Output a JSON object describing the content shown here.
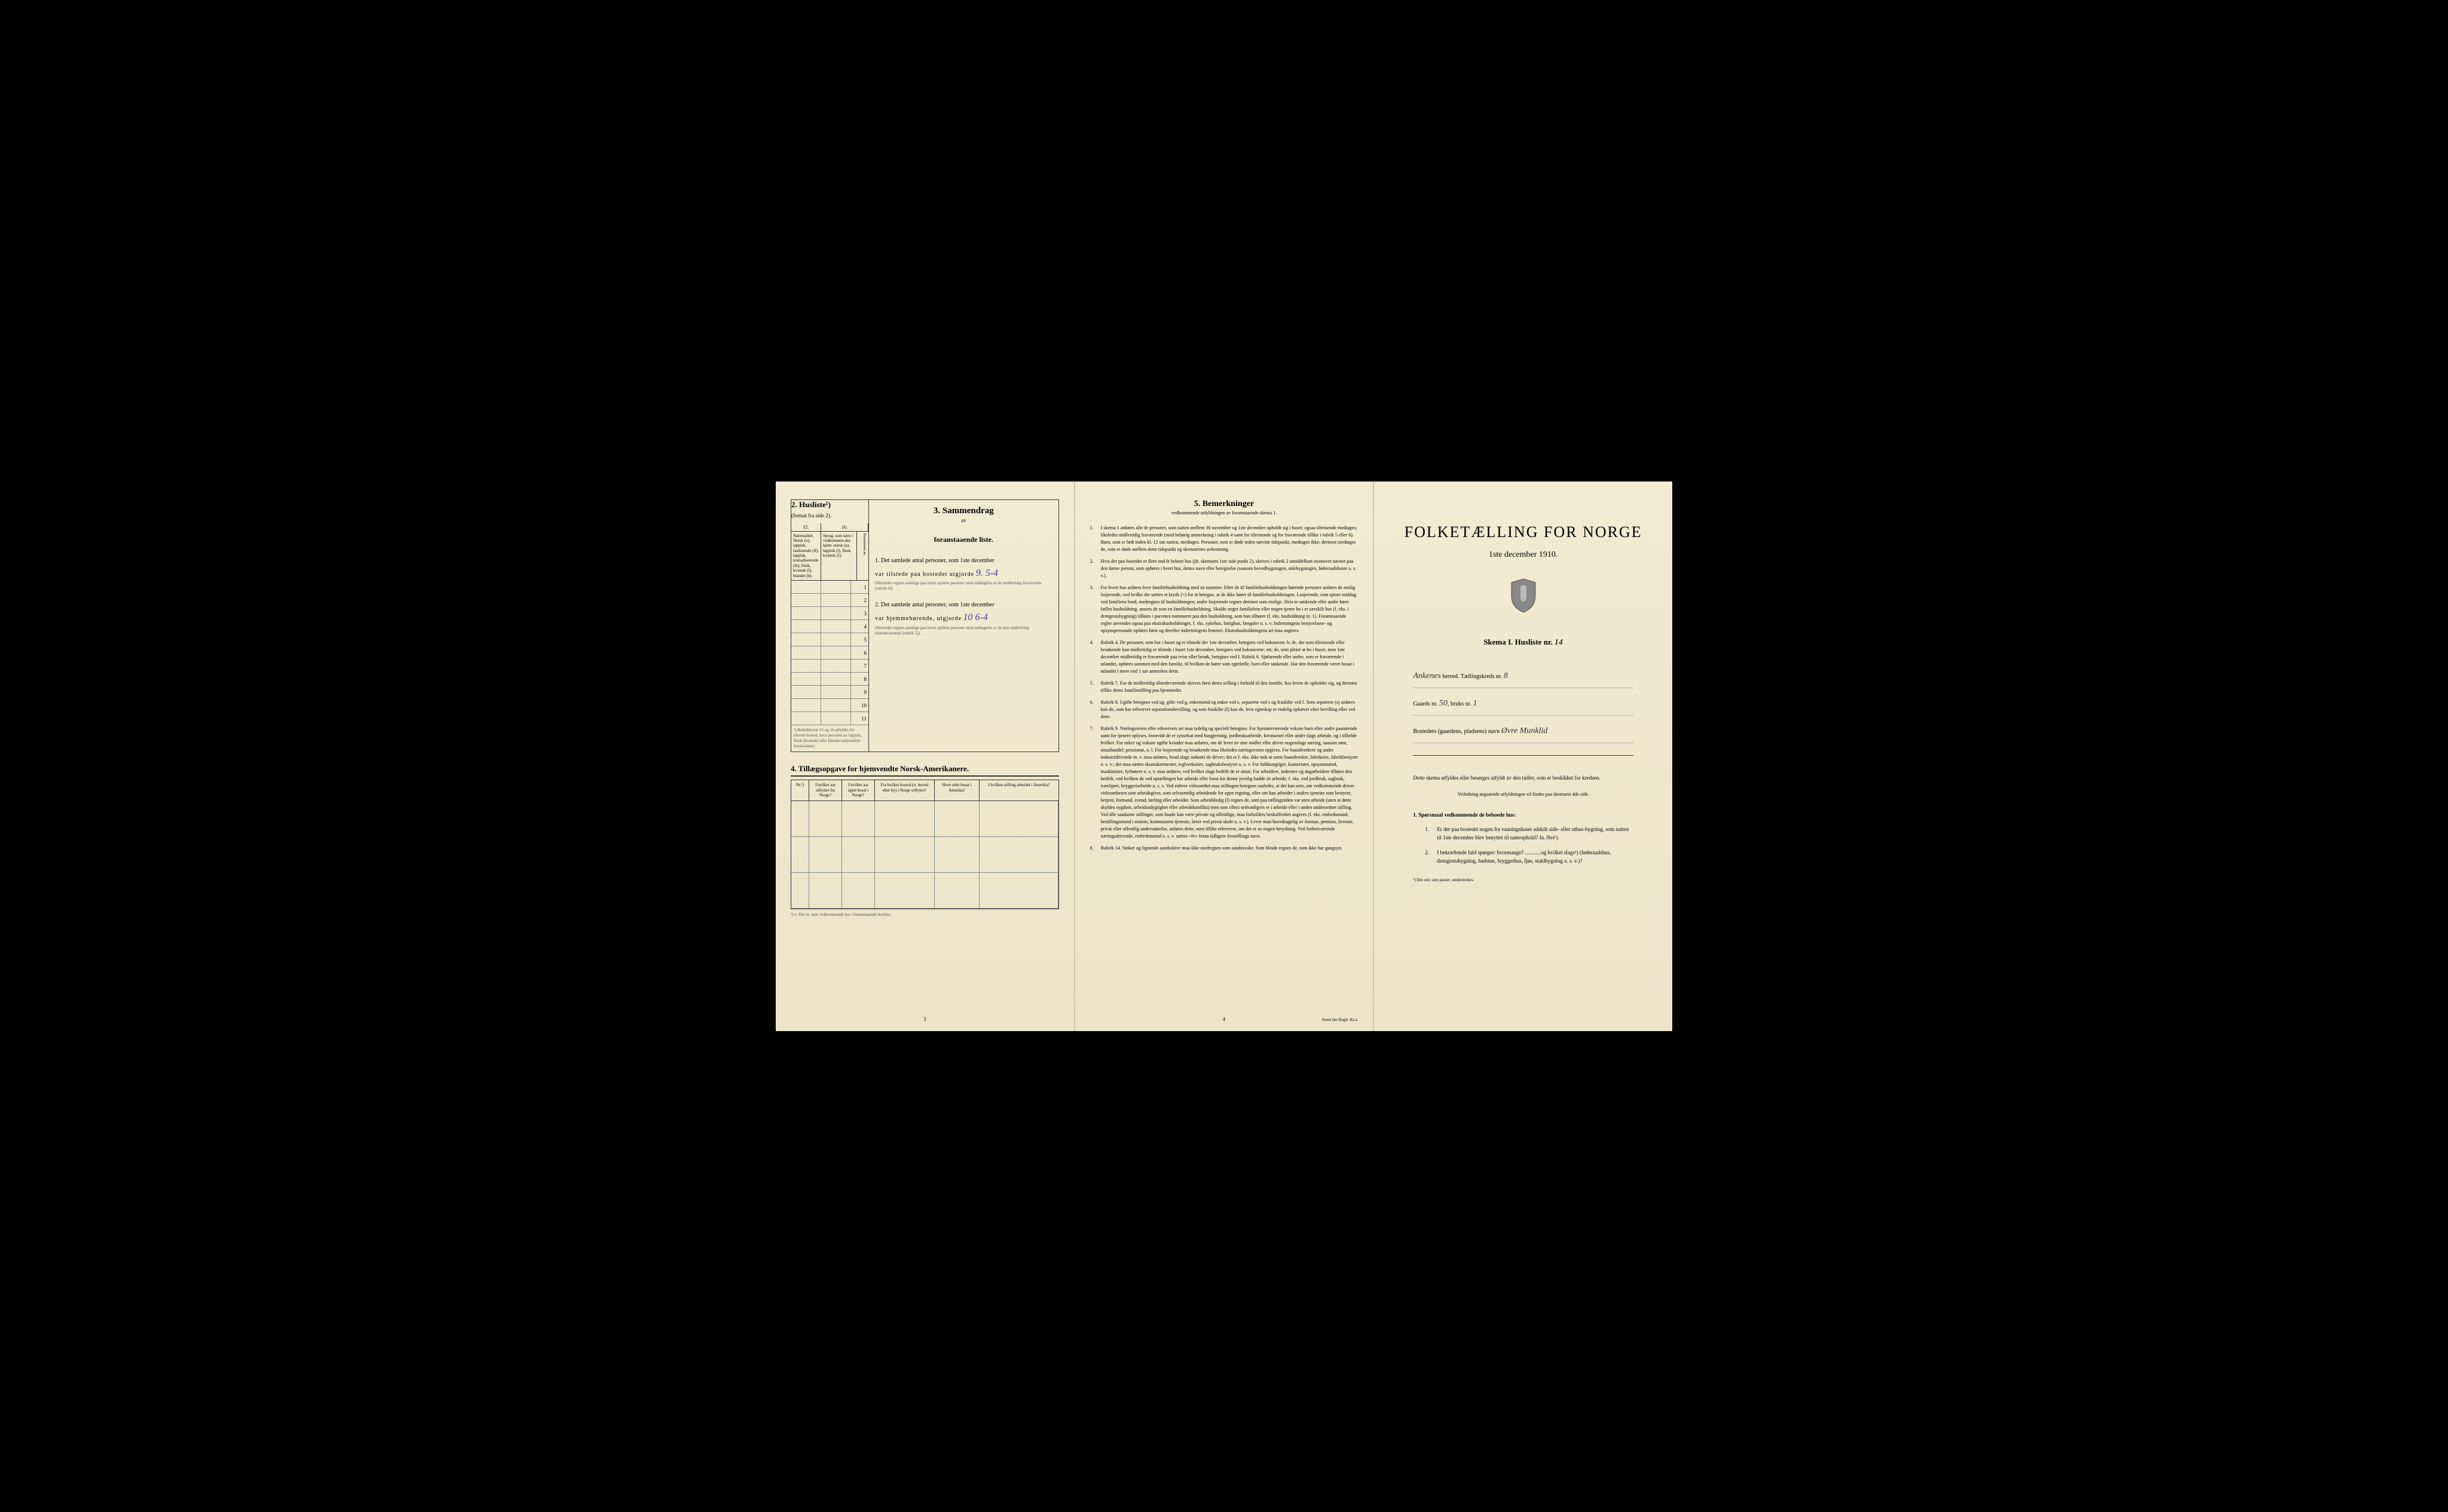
{
  "page1": {
    "section2": {
      "title": "2. Husliste¹)",
      "subtitle": "(fortsat fra side 2).",
      "col15_header": "15.",
      "col16_header": "16.",
      "col15_label": "Nationalitet.\nNorsk (n), lappisk, fastboende (lf), lappisk, nomadiserende (ln), finsk, kvænsk (f), blandet (b).",
      "col16_label": "Sprog.\nsom tales i vedkommen-des hjem: norsk (n), lappisk (l), finsk, kvænsk (f).",
      "col_extra": "Personernes nr.",
      "rows": [
        "1",
        "2",
        "3",
        "4",
        "5",
        "6",
        "7",
        "8",
        "9",
        "10",
        "11"
      ],
      "footnote": "¹) Rubrikkerne 15 og 16 utfyldes for ethvert bosted, hvor personer av lappisk, finsk (kvænsk) eller blandet nationalitet forekommer."
    },
    "section3": {
      "title": "3. Sammendrag",
      "subtitle_av": "av",
      "subtitle": "foranstaaende liste.",
      "item1_text": "1. Det samlede antal personer, som 1ste december",
      "item1_line2": "var tilstede paa bostedet utgjorde",
      "item1_value": "9. 5-4",
      "item1_note": "(Herunder regnes samtlige paa listen opførte personer med undtagelse av de midlertidig fraværende [rubrik 6]).",
      "item2_text": "2. Det samlede antal personer, som 1ste december",
      "item2_line2": "var hjemmehørende, utgjorde",
      "item2_value": "10  6-4",
      "item2_note": "(Herunder regnes samtlige paa listen opførte personer med undtagelse av de kun midlertidig tilstedeværende [rubrik 5])."
    },
    "section4": {
      "title": "4. Tillægsopgave for hjemvendte Norsk-Amerikanere.",
      "headers": {
        "c1": "Nr.²)",
        "c2": "I hvilket aar utflyttet fra Norge?",
        "c3": "I hvilket aar igjen bosat i Norge?",
        "c4": "Fra hvilket bosted (o: herred eller by) i Norge utflyttet?",
        "c5": "Hvor sidst bosat i Amerika?",
        "c6": "I hvilken stilling arbeidet i Amerika?"
      },
      "footnote": "²) o: Det nr. som vedkommende har i foranstaaende husliste."
    },
    "page_num": "3"
  },
  "page2": {
    "title": "5. Bemerkninger",
    "subtitle": "vedkommende utfyldningen av foranstaaende skema 1.",
    "remarks": [
      {
        "n": "1.",
        "t": "I skema 1 anføres alle de personer, som natten mellem 30 november og 1ste december opholdt sig i huset; ogsaa tilreisende medtages; likeledes midlertidig fraværende (med behørig anmerkning i rubrik 4 samt for tilreisende og for fraværende tillike i rubrik 5 eller 6). Barn, som er født inden kl. 12 om natten, medtages. Personer, som er døde inden nævnte tidspunkt, medtages ikke; derimot medtages de, som er døde mellem dette tidspunkt og skemaernes avhentning."
      },
      {
        "n": "2.",
        "t": "Hvis der paa bostedet er flere end ét beboet hus (jfr. skemaets 1ste side punkt 2), skrives i rubrik 2 umiddelbart ovenover navnet paa den første person, som opføres i hvert hus, dettes navn eller betegnelse (saasom hovedbygningen, sidebygningen, føderaadshuset o. s. v.)."
      },
      {
        "n": "3.",
        "t": "For hvert hus anføres hver familiehusholdning med sit nummer. Efter de til familiehusholdningen hørende personer anføres de enslig losjerende, ved hvilke der sættes et kryds (×) for at betegne, at de ikke hører til familiehusholdningen. Losjerende, som spiser middag ved familiens bord, medregnes til husholdningen; andre losjerende regnes derimot som enslige. Hvis to søskende eller andre fører fælles husholdning, ansees de som en familiehusholdning. Skulde noget familielem eller nogen tjener bo i et særskilt hus (f. eks. i drengestubygning) tilføies i parentes nummeret paa den husholdning, som han tilhører (f. eks. husholdning nr. 1). Foranstaaende regler anvendes ogsaa paa ekstrahusholdninger, f. eks. sykehus, fattighus, fængsler o. s. v. Indretningens bestyrelsese- og opsynspersonale opføres først og derefter indretningens lemmer. Ekstrahusholdningens art maa angives."
      },
      {
        "n": "4.",
        "t": "Rubrik 4. De personer, som bor i huset og er tilstede der 1ste december, betegnes ved bokstaven: b; de, der som tilreisende eller besøkende kun midlertidig er tilstede i huset 1ste december, betegnes ved bokstavene: mt; de, som pleier at bo i huset, men 1ste december midlertidig er fraværende paa reise eller besøk, betegnes ved f. Rubrik 6. Sjøfarende eller andre, som er fraværende i utlandet, opføres sammen med den familie, til hvilken de hører som egtefælle, barn eller søskende. Har den fraværende været bosat i utlandet i mere end 1 aar anmerkes dette."
      },
      {
        "n": "5.",
        "t": "Rubrik 7. For de midlertidig tilstedeværende skrives først deres stilling i forhold til den familie, hos hvem de opholder sig, og dernæst tillike deres familiestilling paa hjemstedet."
      },
      {
        "n": "6.",
        "t": "Rubrik 8. Ugifte betegnes ved ug, gifte ved g, enkemænd og enker ved e, separerte ved s og fraskilte ved f. Som separerte (s) anføres kun de, som har erhvervet separationsbevilling, og som fraskilte (f) kun de, hvis egteskap er endelig ophævet efter bevilling eller ved dom."
      },
      {
        "n": "7.",
        "t": "Rubrik 9. Næringsveien eller erhvervets art maa tydelig og specielt betegnes. For hjemmeværende voksne barn eller andre paarørende samt for tjenere oplyses, hvorvidt de er sysselsat med husgjerning, jordbruksarbeide, kreaturstel eller andet slags arbeide, og i tilfælde hvilket. For enker og voksne ugifte kvinder maa anføres, om de lever av sine midler eller driver nogenslags næring, saasom søm, smaahandel, pensionat, o. l. For losjerende og besøkende maa likeledes næringsveien opgives. For haandverkere og andre industridrivende m. v. maa anføres, hvad slags industri de driver; det er f. eks. ikke nok at sætte haandverker, fabrikeier, fabrikbestyrer o. s. v.; der maa sættes skomakermester, teglverkseier, sagbruksbestyrer o. s. v. For fuldmægtiger, kontorister, opsynsmænd, maskinister, fyrbøtere o. s. v. maa anføres, ved hvilket slags bedrift de er ansat. For arbeidere, inderster og dagarbeidere tilføies den bedrift, ved hvilken de ved optællingen har arbeide eller forut for denne jevnlig hadde sit arbeide, f. eks. ved jordbruk, sagbruk, træsliperi, bryggeriarbeide o. s. v. Ved enhver virksomhet maa stillingen betegnes saaledes, at det kan sees, om vedkommende driver virksomheten som arbeidsgiver, som selvstændig arbeidende for egen regning, eller om han arbeider i andres tjeneste som bestyrer, betjent, formand, svend, lærling eller arbeider. Som arbeidsledig (l) regnes de, som paa tællingstiden var uten arbeide (uten at dette skyldes sygdom, arbeidsudygtighet eller arbeidskonflikt) men som ellers sedvanligvis er i arbeide eller i anden underordnet stilling. Ved alle saadanne stillinger, som baade kan være private og offentlige, maa forholdets beskaffenhet angives (f. eks. embedsmand, bestillingsmand i statens, kommunens tjeneste, lærer ved privat skole o. s. v.). Lever man hovedsagelig av formue, pension, livrente, privat eller offentlig understøttelse, anføres dette, men tillike erhvervet, om det er av nogen betydning. Ved forhenværende næringsdrivende, embedsmænd o. s. v. sættes «fv» foran tidligere livsstillings navn."
      },
      {
        "n": "8.",
        "t": "Rubrik 14. Sinker og lignende aandssløve maa ikke medregnes som aandssvake. Som blinde regnes de, som ikke har gangsyn."
      }
    ],
    "page_num": "4",
    "printer": "Steen'ske Bogtr. Kr.a."
  },
  "page3": {
    "title": "FOLKETÆLLING FOR NORGE",
    "date": "1ste december 1910.",
    "skema": "Skema I. Husliste nr.",
    "skema_val": "14",
    "line1_label": "herred. Tællingskreds nr.",
    "line1_val_a": "Ankenes",
    "line1_val_b": "8",
    "line2_label_a": "Gaards nr.",
    "line2_val_a": "50",
    "line2_label_b": "bruks nr.",
    "line2_val_b": "1",
    "line3_label": "Bostedets (gaardens, pladsens) navn",
    "line3_val": "Øvre Munklid",
    "instructions_intro": "Dette skema utfyldes eller besørges utfyldt av den tæller, som er beskikket for kredsen.",
    "instructions_note": "Veiledning angaaende utfyldningen vil findes paa skemaets 4de side.",
    "q_header": "1. Spørsmaal vedkommende de beboede hus:",
    "q1": "Er der paa bostedet nogen fra vaaningshuset adskilt side- eller uthus-bygning, som natten til 1ste december blev benyttet til natteophold? Ja. Nei¹).",
    "q2": "I bekræftende fald spørges: hvormange? ............og hvilket slags¹) (føderaadshus, drengestubygning, badstue, bryggerhus, fjøs, staldbygning o. s. v.)?",
    "footnote": "¹) Det ord, som passer, understrekes."
  },
  "colors": {
    "paper": "#f0e8d0",
    "ink": "#222",
    "handwriting": "#4a3a8a"
  }
}
